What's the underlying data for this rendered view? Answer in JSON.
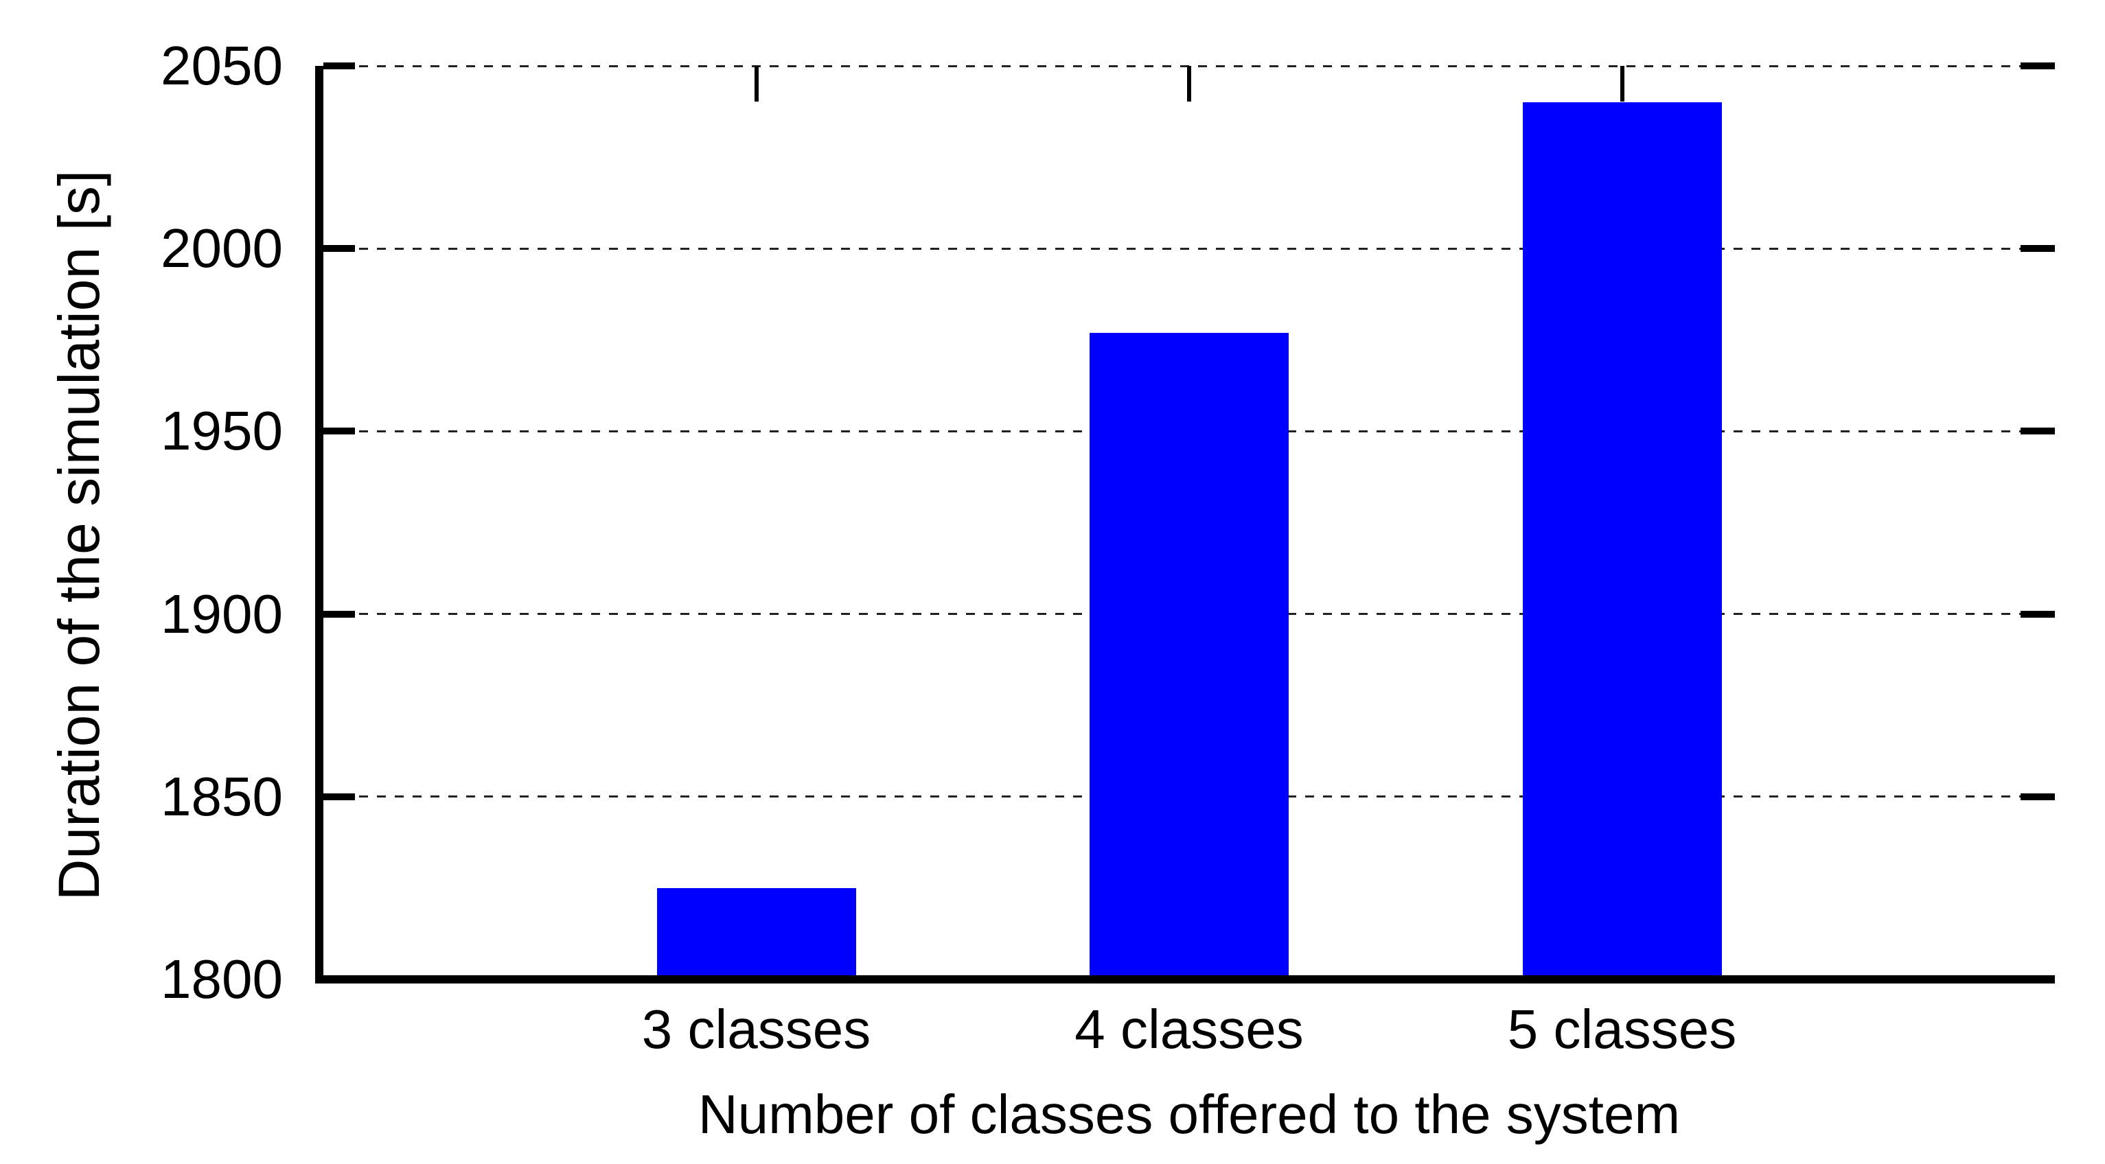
{
  "page": {
    "background": "#ffffff"
  },
  "chart_data": {
    "type": "bar",
    "categories": [
      "3 classes",
      "4 classes",
      "5 classes"
    ],
    "values": [
      1825,
      1977,
      2040
    ],
    "xlabel": "Number of classes offered to the system",
    "ylabel": "Duration of the simulation [s]",
    "ylim": [
      1800,
      2050
    ],
    "yticks": [
      1800,
      1850,
      1900,
      1950,
      2000,
      2050
    ],
    "grid": "horizontal-dashed",
    "legend_position": "none",
    "bar_color": "#0000ff",
    "axis_color": "#000000",
    "grid_color": "#222222",
    "text_color": "#000000"
  }
}
